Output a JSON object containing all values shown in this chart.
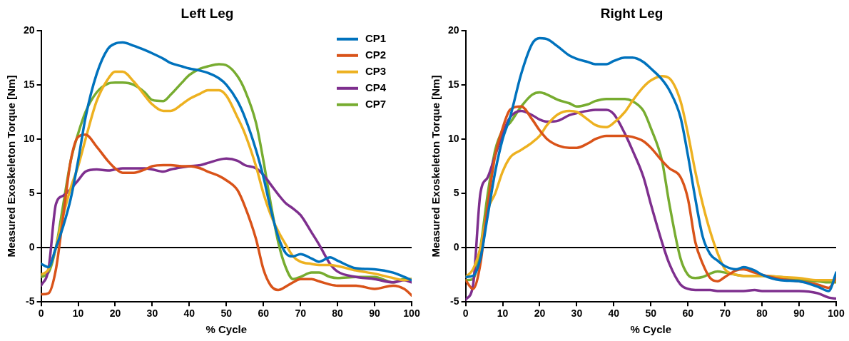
{
  "chart_data": [
    {
      "type": "line",
      "title": "Left Leg",
      "xlabel": "% Cycle",
      "ylabel": "Measured Exoskeleton Torque [Nm]",
      "legend": "top right",
      "grid": false,
      "marker": "none",
      "line_style": "solid",
      "x": [
        0,
        2,
        4,
        6,
        8,
        10,
        12,
        15,
        18,
        20,
        22,
        25,
        28,
        30,
        33,
        35,
        38,
        40,
        43,
        45,
        48,
        50,
        53,
        55,
        58,
        60,
        62,
        64,
        66,
        68,
        70,
        73,
        75,
        78,
        80,
        85,
        90,
        95,
        98,
        100
      ],
      "xlim": [
        0,
        100
      ],
      "xticks": [
        0,
        10,
        20,
        30,
        40,
        50,
        60,
        70,
        80,
        90,
        100
      ],
      "ylim": [
        -5,
        20
      ],
      "yticks": [
        -5,
        0,
        5,
        10,
        15,
        20
      ],
      "ref_lines": [
        {
          "axis": "y",
          "value": 0,
          "color": "#000000"
        }
      ],
      "series": [
        {
          "name": "CP1",
          "color": "#0072bd",
          "values": [
            -1.5,
            -1.8,
            0,
            2,
            4.5,
            8,
            12,
            16,
            18.3,
            18.8,
            18.9,
            18.6,
            18.2,
            17.9,
            17.4,
            17.0,
            16.7,
            16.5,
            16.3,
            16.1,
            15.6,
            15,
            13.5,
            12,
            9,
            6.5,
            3.5,
            1,
            -0.5,
            -0.8,
            -0.6,
            -1.0,
            -1.3,
            -0.9,
            -1.2,
            -1.9,
            -2.0,
            -2.3,
            -2.7,
            -3.0
          ]
        },
        {
          "name": "CP2",
          "color": "#d95319",
          "values": [
            -4.3,
            -4.2,
            -2,
            3,
            8,
            10.2,
            10.4,
            9.3,
            8,
            7.3,
            6.9,
            6.9,
            7.2,
            7.5,
            7.6,
            7.6,
            7.5,
            7.5,
            7.3,
            7.0,
            6.6,
            6.2,
            5.3,
            3.8,
            0.8,
            -2,
            -3.5,
            -3.9,
            -3.6,
            -3.2,
            -2.9,
            -2.9,
            -3.1,
            -3.4,
            -3.5,
            -3.5,
            -3.8,
            -3.5,
            -3.8,
            -4.4
          ]
        },
        {
          "name": "CP3",
          "color": "#edb120",
          "values": [
            -2.5,
            -2,
            0,
            3,
            5.5,
            7.5,
            10,
            13.5,
            15.5,
            16.2,
            16.2,
            15.3,
            14,
            13.2,
            12.6,
            12.6,
            13.2,
            13.7,
            14.2,
            14.5,
            14.5,
            14,
            12,
            10.5,
            7.5,
            5,
            3,
            1.5,
            0.3,
            -0.8,
            -1.3,
            -1.5,
            -1.6,
            -1.6,
            -1.7,
            -2.1,
            -2.4,
            -2.8,
            -3.0,
            -2.9
          ]
        },
        {
          "name": "CP4",
          "color": "#7e2f8e",
          "values": [
            -3.5,
            -2,
            4,
            4.8,
            5.4,
            6.2,
            7.0,
            7.2,
            7.1,
            7.2,
            7.3,
            7.3,
            7.3,
            7.2,
            7.0,
            7.2,
            7.4,
            7.5,
            7.6,
            7.8,
            8.1,
            8.2,
            8.0,
            7.6,
            7.3,
            6.7,
            5.8,
            4.9,
            4.1,
            3.6,
            3.0,
            1.4,
            0.3,
            -1.5,
            -2.2,
            -2.7,
            -2.9,
            -3.2,
            -3.0,
            -3.2
          ]
        },
        {
          "name": "CP7",
          "color": "#77ac30",
          "values": [
            -2.7,
            -2.3,
            0,
            4,
            8,
            10.5,
            12.5,
            14.3,
            15.1,
            15.2,
            15.2,
            15.0,
            14.3,
            13.6,
            13.5,
            14.1,
            15.2,
            15.9,
            16.5,
            16.7,
            16.9,
            16.8,
            15.8,
            14.5,
            11.5,
            8,
            4,
            0.5,
            -1.8,
            -2.9,
            -2.7,
            -2.3,
            -2.3,
            -2.7,
            -2.8,
            -2.7,
            -2.7,
            -3.2,
            -2.9,
            -2.9
          ]
        }
      ]
    },
    {
      "type": "line",
      "title": "Right Leg",
      "xlabel": "% Cycle",
      "ylabel": "Measured Exoskeleton Torque [Nm]",
      "grid": false,
      "marker": "none",
      "line_style": "solid",
      "x": [
        0,
        2,
        4,
        6,
        8,
        10,
        12,
        15,
        18,
        20,
        22,
        25,
        28,
        30,
        33,
        35,
        38,
        40,
        43,
        45,
        48,
        50,
        53,
        55,
        58,
        60,
        62,
        64,
        66,
        68,
        70,
        73,
        75,
        78,
        80,
        85,
        90,
        95,
        98,
        100
      ],
      "xlim": [
        0,
        100
      ],
      "xticks": [
        0,
        10,
        20,
        30,
        40,
        50,
        60,
        70,
        80,
        90,
        100
      ],
      "ylim": [
        -5,
        20
      ],
      "yticks": [
        -5,
        0,
        5,
        10,
        15,
        20
      ],
      "ref_lines": [
        {
          "axis": "y",
          "value": 0,
          "color": "#000000"
        }
      ],
      "series": [
        {
          "color": "#0072bd",
          "values": [
            -2.7,
            -2.6,
            -1,
            3,
            7,
            10,
            12,
            16,
            18.8,
            19.3,
            19.2,
            18.5,
            17.7,
            17.4,
            17.1,
            16.9,
            16.9,
            17.2,
            17.5,
            17.5,
            17.1,
            16.5,
            15.5,
            14.5,
            12,
            8.5,
            4.5,
            1,
            -0.6,
            -1.2,
            -1.7,
            -2.0,
            -1.8,
            -2.1,
            -2.5,
            -3.0,
            -3.1,
            -3.6,
            -4.0,
            -2.3
          ]
        },
        {
          "color": "#d95319",
          "values": [
            -3,
            -3.8,
            -1.5,
            4,
            8.5,
            11,
            12.7,
            13.0,
            11.8,
            10.8,
            10.0,
            9.4,
            9.2,
            9.2,
            9.6,
            10.0,
            10.3,
            10.3,
            10.3,
            10.2,
            9.8,
            9.2,
            8.0,
            7.3,
            6.5,
            4.5,
            0.5,
            -1.5,
            -2.8,
            -3.1,
            -2.7,
            -2.1,
            -2.0,
            -2.3,
            -2.5,
            -2.9,
            -3.1,
            -3.4,
            -3.7,
            -2.8
          ]
        },
        {
          "color": "#edb120",
          "values": [
            -2.7,
            -2,
            0,
            3.5,
            5,
            7,
            8.3,
            9.0,
            9.7,
            10.3,
            11.3,
            12.3,
            12.6,
            12.5,
            11.8,
            11.3,
            11.1,
            11.5,
            12.5,
            13.5,
            14.8,
            15.4,
            15.8,
            15.6,
            13.5,
            10.5,
            7,
            4,
            1.5,
            -0.5,
            -2.0,
            -2.5,
            -2.6,
            -2.6,
            -2.6,
            -2.7,
            -2.8,
            -3.0,
            -3.0,
            -3.0
          ]
        },
        {
          "color": "#7e2f8e",
          "values": [
            -4.8,
            -3.5,
            5,
            6.5,
            8.5,
            10.5,
            12,
            12.6,
            12.2,
            11.8,
            11.6,
            11.7,
            12.2,
            12.4,
            12.6,
            12.7,
            12.7,
            12.3,
            10.5,
            9,
            6.5,
            4,
            0.5,
            -1.5,
            -3.4,
            -3.8,
            -3.9,
            -3.9,
            -3.9,
            -4.0,
            -4.0,
            -4.0,
            -4.0,
            -3.9,
            -4.0,
            -4.0,
            -4.0,
            -4.2,
            -4.6,
            -4.7
          ]
        },
        {
          "color": "#77ac30",
          "values": [
            -3,
            -2.9,
            0,
            5,
            9,
            10.8,
            11.5,
            13.0,
            14.1,
            14.3,
            14.1,
            13.6,
            13.3,
            13.0,
            13.2,
            13.5,
            13.7,
            13.7,
            13.7,
            13.5,
            12.6,
            11,
            8,
            4,
            -1,
            -2.5,
            -2.8,
            -2.7,
            -2.4,
            -2.2,
            -2.3,
            -2.5,
            -2.6,
            -2.6,
            -2.6,
            -2.7,
            -3.0,
            -3.1,
            -3.2,
            -3.2
          ]
        }
      ]
    }
  ]
}
